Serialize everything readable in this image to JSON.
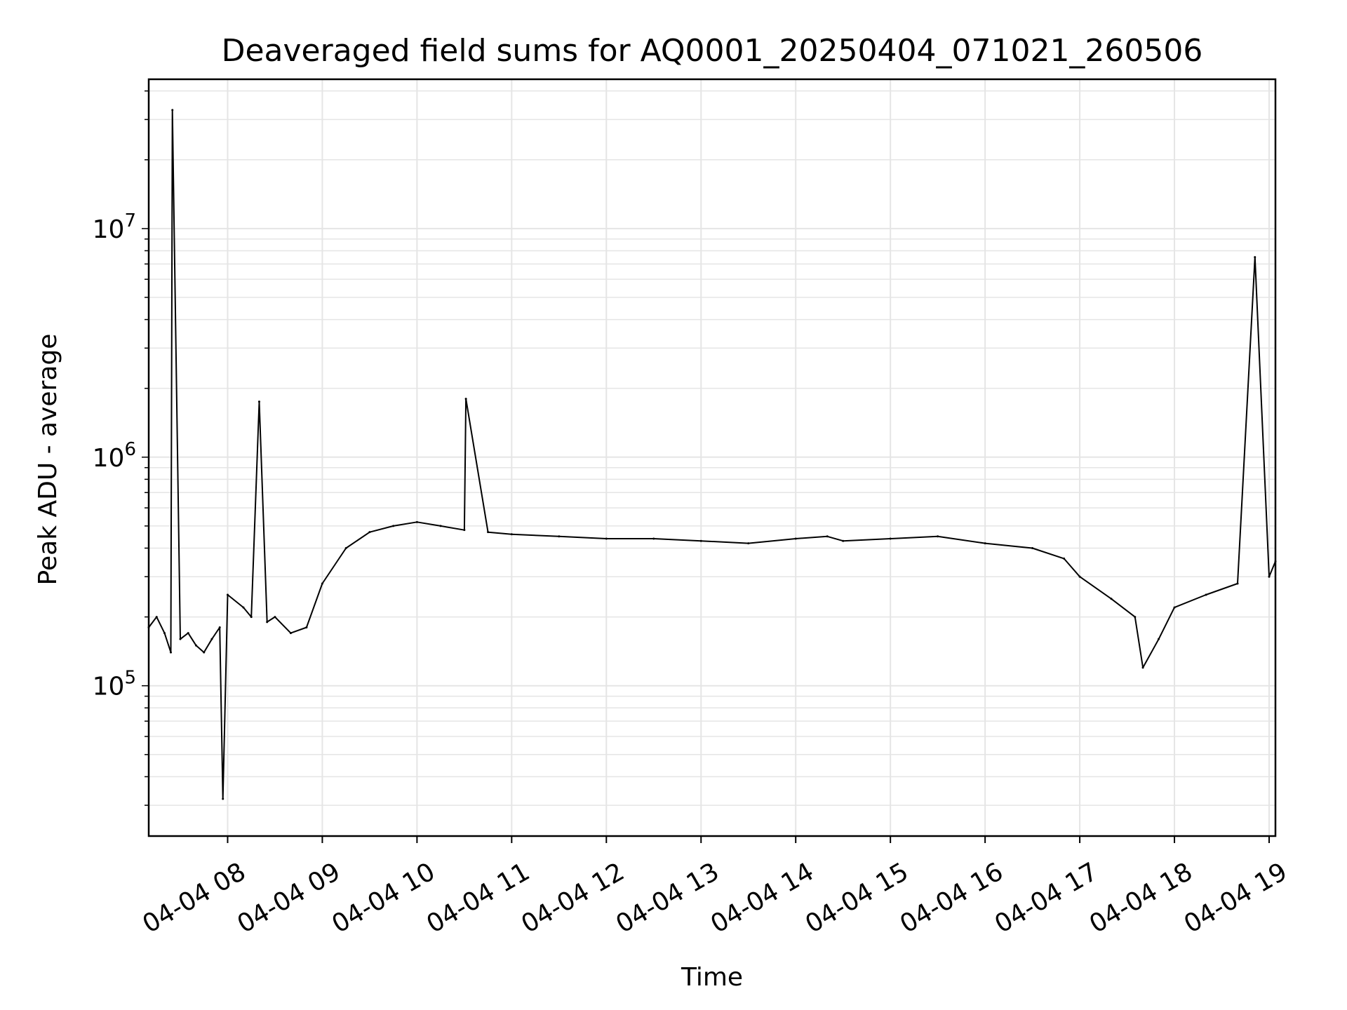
{
  "chart_data": {
    "type": "line",
    "title": "Deaveraged field sums for AQ0001_20250404_071021_260506",
    "xlabel": "Time",
    "ylabel": "Peak ADU - average",
    "y_scale": "log",
    "ylim": [
      22000,
      45000000
    ],
    "xlim": [
      "2025-04-04 07:10",
      "2025-04-04 19:04"
    ],
    "grid": true,
    "line_color": "#000000",
    "grid_color": "#e5e5e5",
    "x_ticks": [
      {
        "value": "2025-04-04 08:00",
        "label": "04-04 08"
      },
      {
        "value": "2025-04-04 09:00",
        "label": "04-04 09"
      },
      {
        "value": "2025-04-04 10:00",
        "label": "04-04 10"
      },
      {
        "value": "2025-04-04 11:00",
        "label": "04-04 11"
      },
      {
        "value": "2025-04-04 12:00",
        "label": "04-04 12"
      },
      {
        "value": "2025-04-04 13:00",
        "label": "04-04 13"
      },
      {
        "value": "2025-04-04 14:00",
        "label": "04-04 14"
      },
      {
        "value": "2025-04-04 15:00",
        "label": "04-04 15"
      },
      {
        "value": "2025-04-04 16:00",
        "label": "04-04 16"
      },
      {
        "value": "2025-04-04 17:00",
        "label": "04-04 17"
      },
      {
        "value": "2025-04-04 18:00",
        "label": "04-04 18"
      },
      {
        "value": "2025-04-04 19:00",
        "label": "04-04 19"
      }
    ],
    "y_ticks": [
      {
        "value": 100000,
        "mantissa": "10",
        "exponent": "5"
      },
      {
        "value": 1000000,
        "mantissa": "10",
        "exponent": "6"
      },
      {
        "value": 10000000,
        "mantissa": "10",
        "exponent": "7"
      }
    ],
    "series": [
      {
        "x": [
          "2025-04-04 07:10",
          "2025-04-04 07:15",
          "2025-04-04 07:20",
          "2025-04-04 07:24",
          "2025-04-04 07:25",
          "2025-04-04 07:30",
          "2025-04-04 07:35",
          "2025-04-04 07:40",
          "2025-04-04 07:45",
          "2025-04-04 07:50",
          "2025-04-04 07:55",
          "2025-04-04 07:57",
          "2025-04-04 08:00",
          "2025-04-04 08:10",
          "2025-04-04 08:15",
          "2025-04-04 08:20",
          "2025-04-04 08:25",
          "2025-04-04 08:30",
          "2025-04-04 08:40",
          "2025-04-04 08:50",
          "2025-04-04 09:00",
          "2025-04-04 09:15",
          "2025-04-04 09:30",
          "2025-04-04 09:45",
          "2025-04-04 10:00",
          "2025-04-04 10:15",
          "2025-04-04 10:30",
          "2025-04-04 10:31",
          "2025-04-04 10:45",
          "2025-04-04 11:00",
          "2025-04-04 11:30",
          "2025-04-04 12:00",
          "2025-04-04 12:30",
          "2025-04-04 13:00",
          "2025-04-04 13:30",
          "2025-04-04 14:00",
          "2025-04-04 14:20",
          "2025-04-04 14:30",
          "2025-04-04 15:00",
          "2025-04-04 15:30",
          "2025-04-04 16:00",
          "2025-04-04 16:30",
          "2025-04-04 16:50",
          "2025-04-04 17:00",
          "2025-04-04 17:20",
          "2025-04-04 17:35",
          "2025-04-04 17:40",
          "2025-04-04 17:50",
          "2025-04-04 18:00",
          "2025-04-04 18:20",
          "2025-04-04 18:40",
          "2025-04-04 18:51",
          "2025-04-04 19:00",
          "2025-04-04 19:04"
        ],
        "y": [
          180000,
          200000,
          170000,
          140000,
          33000000,
          160000,
          170000,
          150000,
          140000,
          160000,
          180000,
          32000,
          250000,
          220000,
          200000,
          1750000,
          190000,
          200000,
          170000,
          180000,
          280000,
          400000,
          470000,
          500000,
          520000,
          500000,
          480000,
          1800000,
          470000,
          460000,
          450000,
          440000,
          440000,
          430000,
          420000,
          440000,
          450000,
          430000,
          440000,
          450000,
          420000,
          400000,
          360000,
          300000,
          240000,
          200000,
          120000,
          160000,
          220000,
          250000,
          280000,
          7500000,
          300000,
          350000
        ]
      }
    ]
  }
}
